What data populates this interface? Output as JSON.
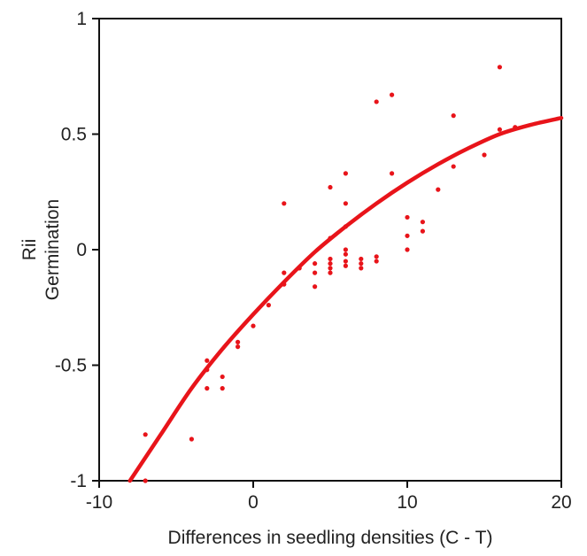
{
  "chart_data": {
    "type": "scatter",
    "xlabel": "Differences in seedling densities (C - T)",
    "ylabel_lines": [
      "Rii",
      "Germination"
    ],
    "xlim": [
      -10,
      20
    ],
    "ylim": [
      -1,
      1
    ],
    "x_ticks": [
      -10,
      0,
      10,
      20
    ],
    "x_tick_labels": [
      "-10",
      "0",
      "10",
      "20"
    ],
    "y_ticks": [
      -1,
      -0.5,
      0,
      0.5,
      1
    ],
    "y_tick_labels": [
      "-1",
      "-0.5",
      "0",
      "0.5",
      "1"
    ],
    "grid": false,
    "legend": "none",
    "point_color": "#e8141a",
    "curve_color": "#e8141a",
    "points": [
      {
        "x": -7,
        "y": -0.8
      },
      {
        "x": -7,
        "y": -1.0
      },
      {
        "x": -4,
        "y": -0.82
      },
      {
        "x": -3,
        "y": -0.48
      },
      {
        "x": -3,
        "y": -0.52
      },
      {
        "x": -3,
        "y": -0.6
      },
      {
        "x": -2,
        "y": -0.55
      },
      {
        "x": -2,
        "y": -0.6
      },
      {
        "x": -1,
        "y": -0.4
      },
      {
        "x": -1,
        "y": -0.42
      },
      {
        "x": 0,
        "y": -0.33
      },
      {
        "x": 1,
        "y": -0.24
      },
      {
        "x": 2,
        "y": 0.2
      },
      {
        "x": 2,
        "y": -0.1
      },
      {
        "x": 2,
        "y": -0.15
      },
      {
        "x": 3,
        "y": -0.08
      },
      {
        "x": 4,
        "y": -0.06
      },
      {
        "x": 4,
        "y": -0.1
      },
      {
        "x": 4,
        "y": -0.16
      },
      {
        "x": 5,
        "y": 0.27
      },
      {
        "x": 5,
        "y": 0.05
      },
      {
        "x": 5,
        "y": -0.04
      },
      {
        "x": 5,
        "y": -0.06
      },
      {
        "x": 5,
        "y": -0.08
      },
      {
        "x": 5,
        "y": -0.1
      },
      {
        "x": 6,
        "y": 0.33
      },
      {
        "x": 6,
        "y": 0.2
      },
      {
        "x": 6,
        "y": 0.1
      },
      {
        "x": 6,
        "y": 0.0
      },
      {
        "x": 6,
        "y": -0.02
      },
      {
        "x": 6,
        "y": -0.05
      },
      {
        "x": 6,
        "y": -0.07
      },
      {
        "x": 7,
        "y": -0.04
      },
      {
        "x": 7,
        "y": -0.06
      },
      {
        "x": 7,
        "y": -0.08
      },
      {
        "x": 8,
        "y": 0.64
      },
      {
        "x": 8,
        "y": -0.03
      },
      {
        "x": 8,
        "y": -0.05
      },
      {
        "x": 9,
        "y": 0.67
      },
      {
        "x": 9,
        "y": 0.33
      },
      {
        "x": 10,
        "y": 0.14
      },
      {
        "x": 10,
        "y": 0.06
      },
      {
        "x": 10,
        "y": 0.0
      },
      {
        "x": 11,
        "y": 0.12
      },
      {
        "x": 11,
        "y": 0.08
      },
      {
        "x": 12,
        "y": 0.26
      },
      {
        "x": 13,
        "y": 0.58
      },
      {
        "x": 13,
        "y": 0.36
      },
      {
        "x": 15,
        "y": 0.41
      },
      {
        "x": 16,
        "y": 0.79
      },
      {
        "x": 16,
        "y": 0.52
      },
      {
        "x": 17,
        "y": 0.53
      }
    ],
    "fit_curve": [
      {
        "x": -8,
        "y": -1.0
      },
      {
        "x": -6,
        "y": -0.8
      },
      {
        "x": -4,
        "y": -0.6
      },
      {
        "x": -2,
        "y": -0.43
      },
      {
        "x": 0,
        "y": -0.28
      },
      {
        "x": 2,
        "y": -0.14
      },
      {
        "x": 4,
        "y": -0.01
      },
      {
        "x": 6,
        "y": 0.1
      },
      {
        "x": 8,
        "y": 0.2
      },
      {
        "x": 10,
        "y": 0.29
      },
      {
        "x": 12,
        "y": 0.37
      },
      {
        "x": 14,
        "y": 0.44
      },
      {
        "x": 16,
        "y": 0.5
      },
      {
        "x": 18,
        "y": 0.54
      },
      {
        "x": 20,
        "y": 0.57
      }
    ]
  }
}
